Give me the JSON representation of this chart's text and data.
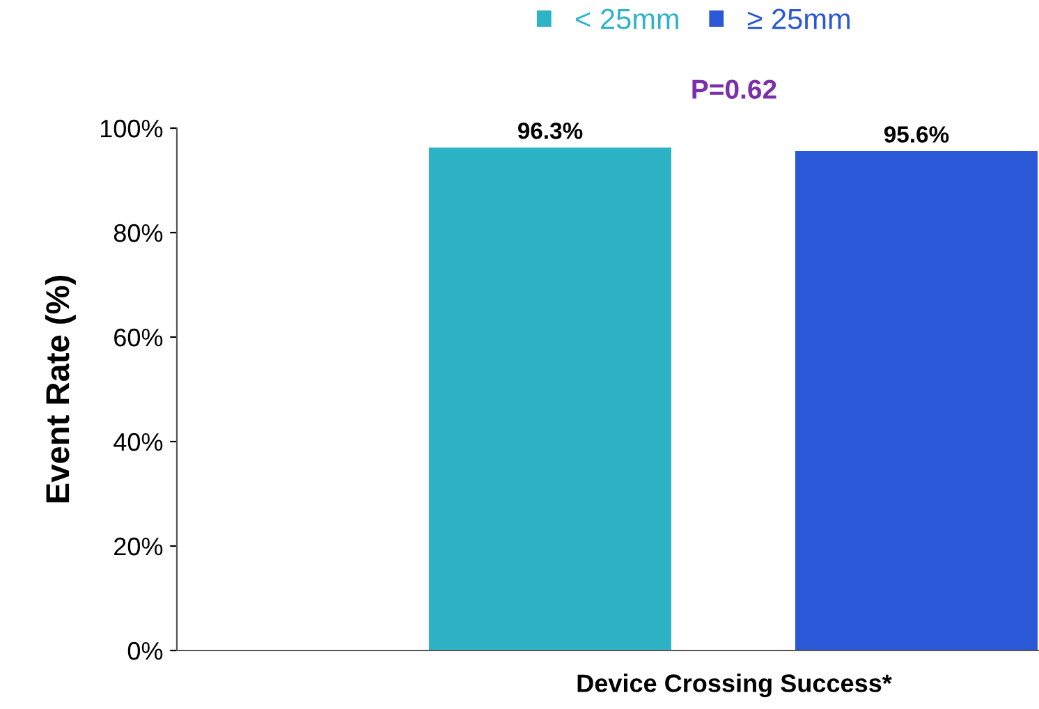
{
  "chart_data": {
    "type": "bar",
    "ylabel": "Event Rate (%)",
    "categories": [
      "Device Crossing Success*"
    ],
    "series": [
      {
        "name": "< 25mm",
        "color": "#2eb3c6",
        "values": [
          96.3
        ],
        "value_labels": [
          "96.3%"
        ]
      },
      {
        "name": "≥ 25mm",
        "color": "#2a58d6",
        "values": [
          95.6
        ],
        "value_labels": [
          "95.6%"
        ]
      }
    ],
    "ylim": [
      0,
      100
    ],
    "yticks": [
      {
        "value": 0,
        "label": "0%"
      },
      {
        "value": 20,
        "label": "20%"
      },
      {
        "value": 40,
        "label": "40%"
      },
      {
        "value": 60,
        "label": "60%"
      },
      {
        "value": 80,
        "label": "80%"
      },
      {
        "value": 100,
        "label": "100%"
      }
    ],
    "annotations": [
      "P=0.62"
    ],
    "legend": "top",
    "grid": false
  }
}
